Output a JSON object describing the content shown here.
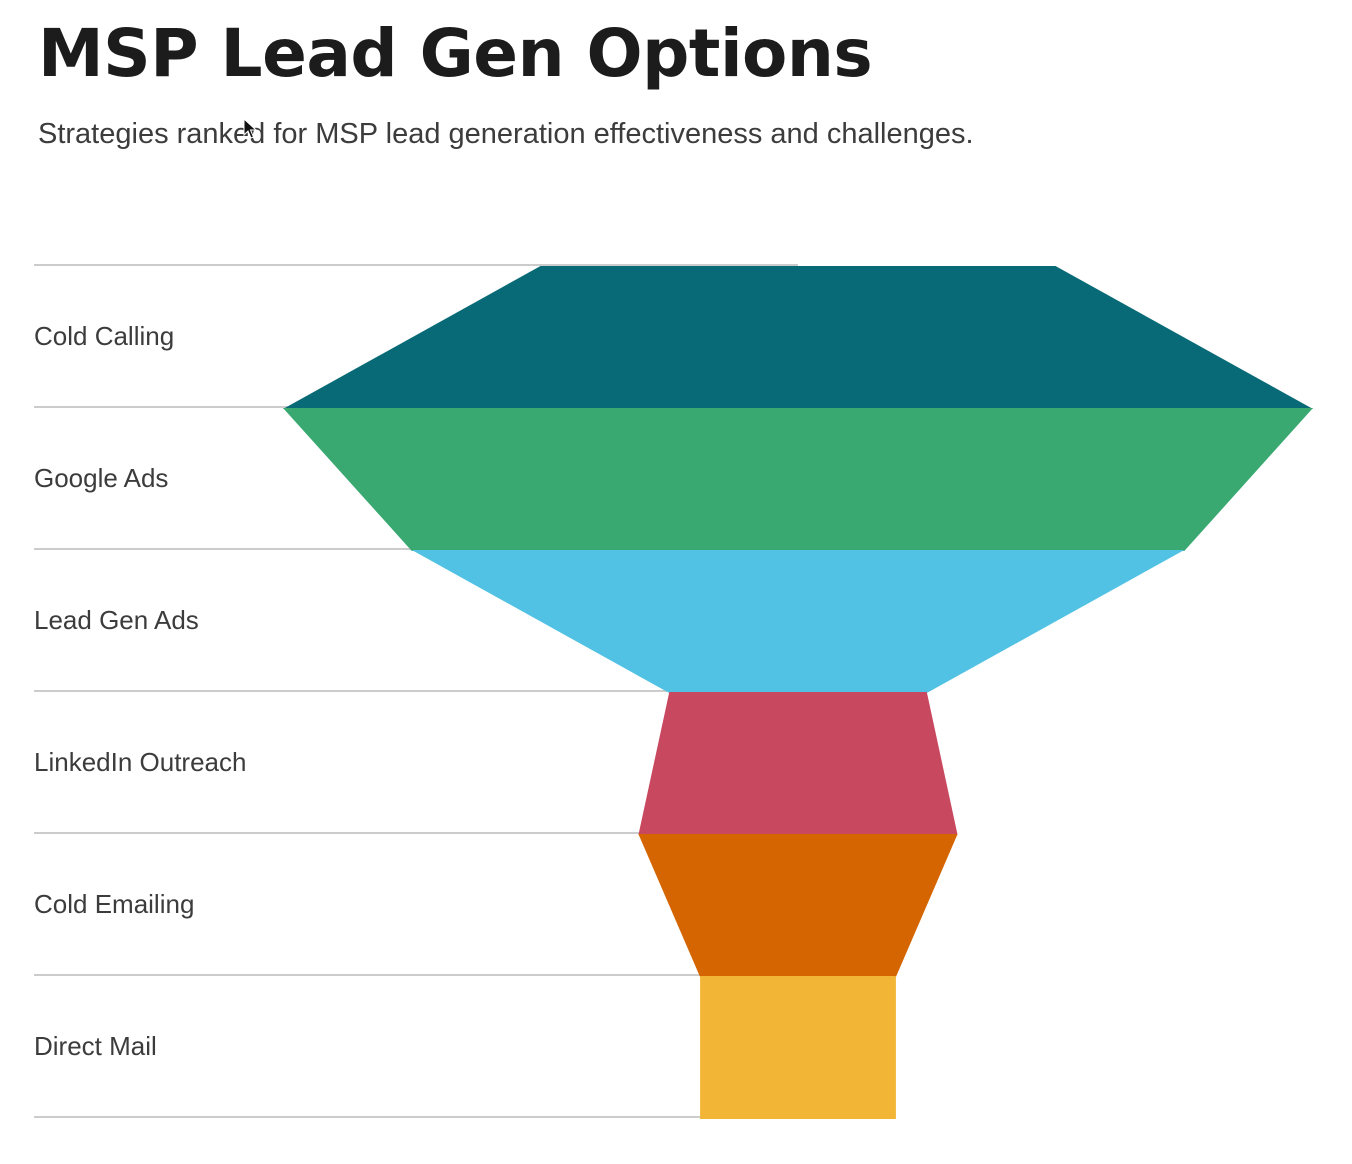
{
  "header": {
    "title": "MSP Lead Gen Options",
    "subtitle": "Strategies ranked for MSP lead generation effectiveness and challenges."
  },
  "chart_data": {
    "type": "funnel",
    "title": "MSP Lead Gen Options",
    "subtitle": "Strategies ranked for MSP lead generation effectiveness and challenges.",
    "categories": [
      "Cold Calling",
      "Google Ads",
      "Lead Gen Ads",
      "LinkedIn Outreach",
      "Cold Emailing",
      "Direct Mail"
    ],
    "values": [
      50,
      100,
      75,
      25,
      31,
      19
    ],
    "colors": [
      "#086a76",
      "#3aa971",
      "#51c2e3",
      "#c84860",
      "#d46500",
      "#f3b535"
    ],
    "gridlines": true,
    "grid_color": "#cccccc",
    "legend": "none"
  }
}
